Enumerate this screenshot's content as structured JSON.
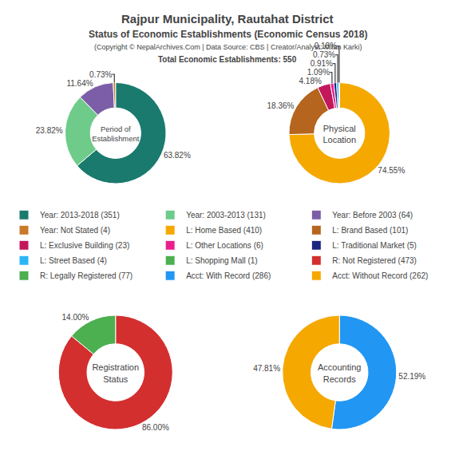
{
  "title": "Rajpur Municipality, Rautahat District\nStatus of Economic Establishments (Economic Census 2018)",
  "subtitle": "(Copyright © NepalArchives.Com | Data Source: CBS | Creator/Analyst: Milan Karki)",
  "annotations": [
    "Total Economic Establishments: 550"
  ],
  "chart_data": [
    {
      "type": "pie",
      "title": "Period of\nEstablishment",
      "categories": [
        "Year: 2013-2018 (351)",
        "Year: 2003-2013 (131)",
        "Year: Before 2003 (64)",
        "Year: Not Stated (4)"
      ],
      "values": [
        63.82,
        23.82,
        11.64,
        0.73
      ],
      "value_labels": [
        "63.82%",
        "23.82%",
        "11.64%",
        "0.73%"
      ],
      "colors": [
        "#1a7a6e",
        "#6ecb8a",
        "#7b5ea7",
        "#c87a2a"
      ],
      "data_labels": true
    },
    {
      "type": "pie",
      "title": "Physical\nLocation",
      "categories": [
        "L: Home Based (410)",
        "L: Brand Based (101)",
        "L: Exclusive Building (23)",
        "L: Other Locations (6)",
        "L: Traditional Market (5)",
        "L: Street Based (4)",
        "L: Shopping Mall (1)"
      ],
      "values": [
        74.55,
        18.36,
        4.18,
        1.09,
        0.91,
        0.73,
        0.18
      ],
      "value_labels": [
        "74.55%",
        "18.36%",
        "4.18%",
        "1.09%",
        "0.91%",
        "0.73%",
        "0.18%"
      ],
      "colors": [
        "#f5a800",
        "#b5651d",
        "#c2185b",
        "#e91e8c",
        "#1a237e",
        "#29b6f6",
        "#4caf50"
      ],
      "data_labels": true
    },
    {
      "type": "pie",
      "title": "Registration\nStatus",
      "categories": [
        "R: Not Registered (473)",
        "R: Legally Registered (77)"
      ],
      "values": [
        86.0,
        14.0
      ],
      "value_labels": [
        "86.00%",
        "14.00%"
      ],
      "colors": [
        "#d32f2f",
        "#4caf50"
      ],
      "data_labels": true
    },
    {
      "type": "pie",
      "title": "Accounting\nRecords",
      "categories": [
        "Acct: With Record (286)",
        "Acct: Without Record (262)"
      ],
      "values": [
        52.19,
        47.81
      ],
      "value_labels": [
        "52.19%",
        "47.81%"
      ],
      "colors": [
        "#2196f3",
        "#f5a800"
      ],
      "data_labels": true
    }
  ]
}
